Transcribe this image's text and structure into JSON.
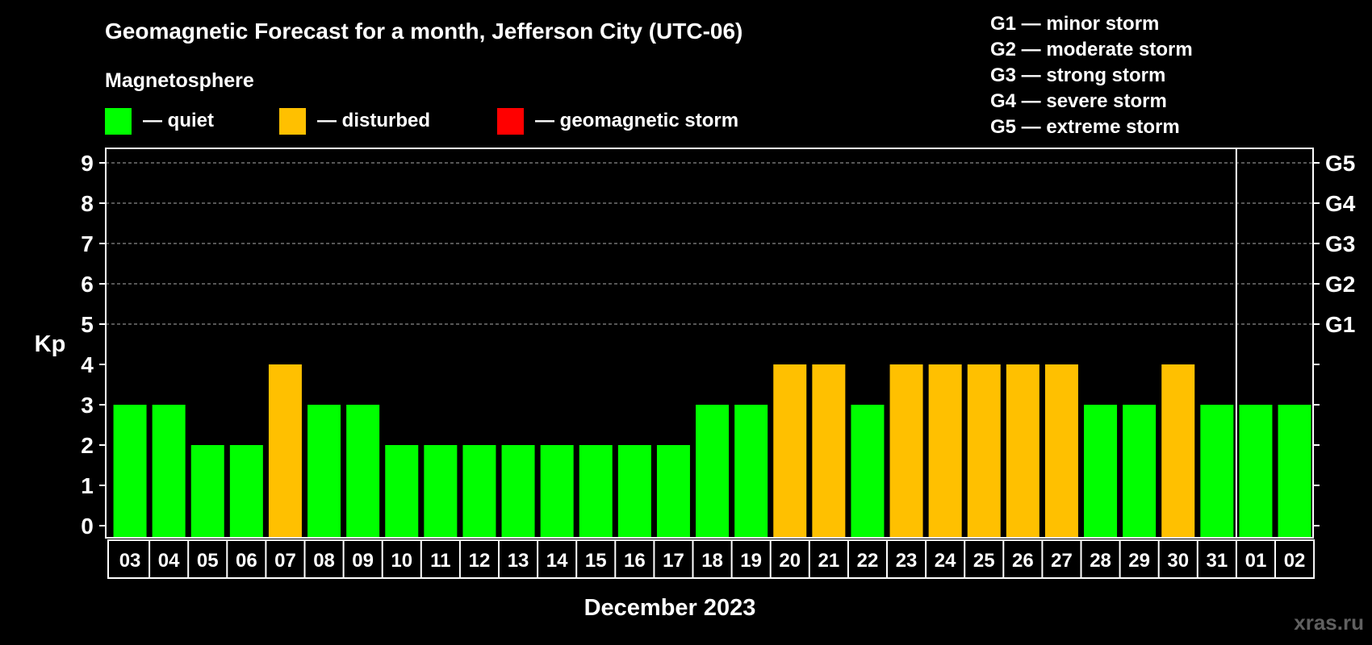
{
  "colors": {
    "background": "#000000",
    "axis": "#ffffff",
    "grid": "#8a8a8a",
    "quiet": "#00ff00",
    "disturbed": "#ffc000",
    "storm": "#ff0000",
    "watermark": "#606060"
  },
  "header": {
    "title": "Geomagnetic Forecast for a month, Jefferson City (UTC-06)",
    "legend_title": "Magnetosphere",
    "legend_items": [
      {
        "label": "— quiet",
        "color": "#00ff00"
      },
      {
        "label": "— disturbed",
        "color": "#ffc000"
      },
      {
        "label": "— geomagnetic storm",
        "color": "#ff0000"
      }
    ],
    "g_scale": [
      "G1 — minor storm",
      "G2 — moderate storm",
      "G3 — strong storm",
      "G4 — severe storm",
      "G5 — extreme storm"
    ]
  },
  "watermark": "xras.ru",
  "chart_data": {
    "type": "bar",
    "title": "Geomagnetic Forecast for a month, Jefferson City (UTC-06)",
    "xlabel": "December 2023",
    "ylabel": "Kp",
    "ylim": [
      0,
      9
    ],
    "yticks": [
      0,
      1,
      2,
      3,
      4,
      5,
      6,
      7,
      8,
      9
    ],
    "grid": "dashed at Kp 5-9",
    "right_axis": [
      {
        "kp": 5,
        "label": "G1"
      },
      {
        "kp": 6,
        "label": "G2"
      },
      {
        "kp": 7,
        "label": "G3"
      },
      {
        "kp": 8,
        "label": "G4"
      },
      {
        "kp": 9,
        "label": "G5"
      }
    ],
    "month_divider_after": "31",
    "categories": [
      "03",
      "04",
      "05",
      "06",
      "07",
      "08",
      "09",
      "10",
      "11",
      "12",
      "13",
      "14",
      "15",
      "16",
      "17",
      "18",
      "19",
      "20",
      "21",
      "22",
      "23",
      "24",
      "25",
      "26",
      "27",
      "28",
      "29",
      "30",
      "31",
      "01",
      "02"
    ],
    "values": [
      3,
      3,
      2,
      2,
      4,
      3,
      3,
      2,
      2,
      2,
      2,
      2,
      2,
      2,
      2,
      3,
      3,
      4,
      4,
      3,
      4,
      4,
      4,
      4,
      4,
      3,
      3,
      4,
      3,
      3,
      3
    ],
    "status": [
      "quiet",
      "quiet",
      "quiet",
      "quiet",
      "disturbed",
      "quiet",
      "quiet",
      "quiet",
      "quiet",
      "quiet",
      "quiet",
      "quiet",
      "quiet",
      "quiet",
      "quiet",
      "quiet",
      "quiet",
      "disturbed",
      "disturbed",
      "quiet",
      "disturbed",
      "disturbed",
      "disturbed",
      "disturbed",
      "disturbed",
      "quiet",
      "quiet",
      "disturbed",
      "quiet",
      "quiet",
      "quiet"
    ]
  }
}
